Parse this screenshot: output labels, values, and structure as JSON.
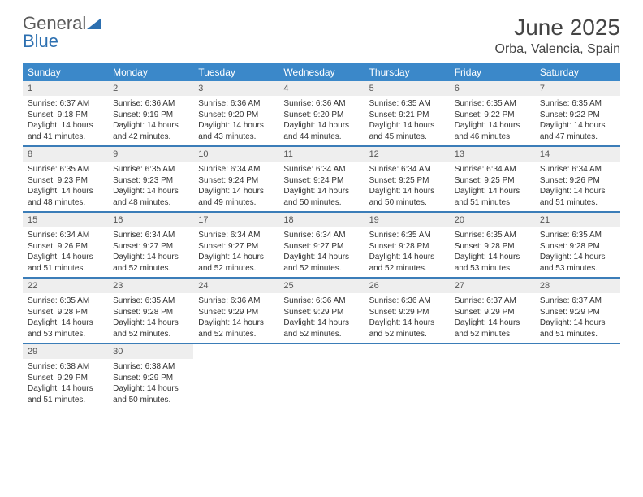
{
  "brand": {
    "part1": "General",
    "part2": "Blue"
  },
  "title": "June 2025",
  "location": "Orba, Valencia, Spain",
  "colors": {
    "header_bg": "#3b88c9",
    "week_border": "#3b7db8",
    "daynum_bg": "#eeeeee",
    "brand_gray": "#5a5a5a",
    "brand_blue": "#2c6fb0"
  },
  "weekdays": [
    "Sunday",
    "Monday",
    "Tuesday",
    "Wednesday",
    "Thursday",
    "Friday",
    "Saturday"
  ],
  "weeks": [
    [
      {
        "n": "1",
        "sunrise": "6:37 AM",
        "sunset": "9:18 PM",
        "day_h": "14",
        "day_m": "41"
      },
      {
        "n": "2",
        "sunrise": "6:36 AM",
        "sunset": "9:19 PM",
        "day_h": "14",
        "day_m": "42"
      },
      {
        "n": "3",
        "sunrise": "6:36 AM",
        "sunset": "9:20 PM",
        "day_h": "14",
        "day_m": "43"
      },
      {
        "n": "4",
        "sunrise": "6:36 AM",
        "sunset": "9:20 PM",
        "day_h": "14",
        "day_m": "44"
      },
      {
        "n": "5",
        "sunrise": "6:35 AM",
        "sunset": "9:21 PM",
        "day_h": "14",
        "day_m": "45"
      },
      {
        "n": "6",
        "sunrise": "6:35 AM",
        "sunset": "9:22 PM",
        "day_h": "14",
        "day_m": "46"
      },
      {
        "n": "7",
        "sunrise": "6:35 AM",
        "sunset": "9:22 PM",
        "day_h": "14",
        "day_m": "47"
      }
    ],
    [
      {
        "n": "8",
        "sunrise": "6:35 AM",
        "sunset": "9:23 PM",
        "day_h": "14",
        "day_m": "48"
      },
      {
        "n": "9",
        "sunrise": "6:35 AM",
        "sunset": "9:23 PM",
        "day_h": "14",
        "day_m": "48"
      },
      {
        "n": "10",
        "sunrise": "6:34 AM",
        "sunset": "9:24 PM",
        "day_h": "14",
        "day_m": "49"
      },
      {
        "n": "11",
        "sunrise": "6:34 AM",
        "sunset": "9:24 PM",
        "day_h": "14",
        "day_m": "50"
      },
      {
        "n": "12",
        "sunrise": "6:34 AM",
        "sunset": "9:25 PM",
        "day_h": "14",
        "day_m": "50"
      },
      {
        "n": "13",
        "sunrise": "6:34 AM",
        "sunset": "9:25 PM",
        "day_h": "14",
        "day_m": "51"
      },
      {
        "n": "14",
        "sunrise": "6:34 AM",
        "sunset": "9:26 PM",
        "day_h": "14",
        "day_m": "51"
      }
    ],
    [
      {
        "n": "15",
        "sunrise": "6:34 AM",
        "sunset": "9:26 PM",
        "day_h": "14",
        "day_m": "51"
      },
      {
        "n": "16",
        "sunrise": "6:34 AM",
        "sunset": "9:27 PM",
        "day_h": "14",
        "day_m": "52"
      },
      {
        "n": "17",
        "sunrise": "6:34 AM",
        "sunset": "9:27 PM",
        "day_h": "14",
        "day_m": "52"
      },
      {
        "n": "18",
        "sunrise": "6:34 AM",
        "sunset": "9:27 PM",
        "day_h": "14",
        "day_m": "52"
      },
      {
        "n": "19",
        "sunrise": "6:35 AM",
        "sunset": "9:28 PM",
        "day_h": "14",
        "day_m": "52"
      },
      {
        "n": "20",
        "sunrise": "6:35 AM",
        "sunset": "9:28 PM",
        "day_h": "14",
        "day_m": "53"
      },
      {
        "n": "21",
        "sunrise": "6:35 AM",
        "sunset": "9:28 PM",
        "day_h": "14",
        "day_m": "53"
      }
    ],
    [
      {
        "n": "22",
        "sunrise": "6:35 AM",
        "sunset": "9:28 PM",
        "day_h": "14",
        "day_m": "53"
      },
      {
        "n": "23",
        "sunrise": "6:35 AM",
        "sunset": "9:28 PM",
        "day_h": "14",
        "day_m": "52"
      },
      {
        "n": "24",
        "sunrise": "6:36 AM",
        "sunset": "9:29 PM",
        "day_h": "14",
        "day_m": "52"
      },
      {
        "n": "25",
        "sunrise": "6:36 AM",
        "sunset": "9:29 PM",
        "day_h": "14",
        "day_m": "52"
      },
      {
        "n": "26",
        "sunrise": "6:36 AM",
        "sunset": "9:29 PM",
        "day_h": "14",
        "day_m": "52"
      },
      {
        "n": "27",
        "sunrise": "6:37 AM",
        "sunset": "9:29 PM",
        "day_h": "14",
        "day_m": "52"
      },
      {
        "n": "28",
        "sunrise": "6:37 AM",
        "sunset": "9:29 PM",
        "day_h": "14",
        "day_m": "51"
      }
    ],
    [
      {
        "n": "29",
        "sunrise": "6:38 AM",
        "sunset": "9:29 PM",
        "day_h": "14",
        "day_m": "51"
      },
      {
        "n": "30",
        "sunrise": "6:38 AM",
        "sunset": "9:29 PM",
        "day_h": "14",
        "day_m": "50"
      },
      null,
      null,
      null,
      null,
      null
    ]
  ]
}
